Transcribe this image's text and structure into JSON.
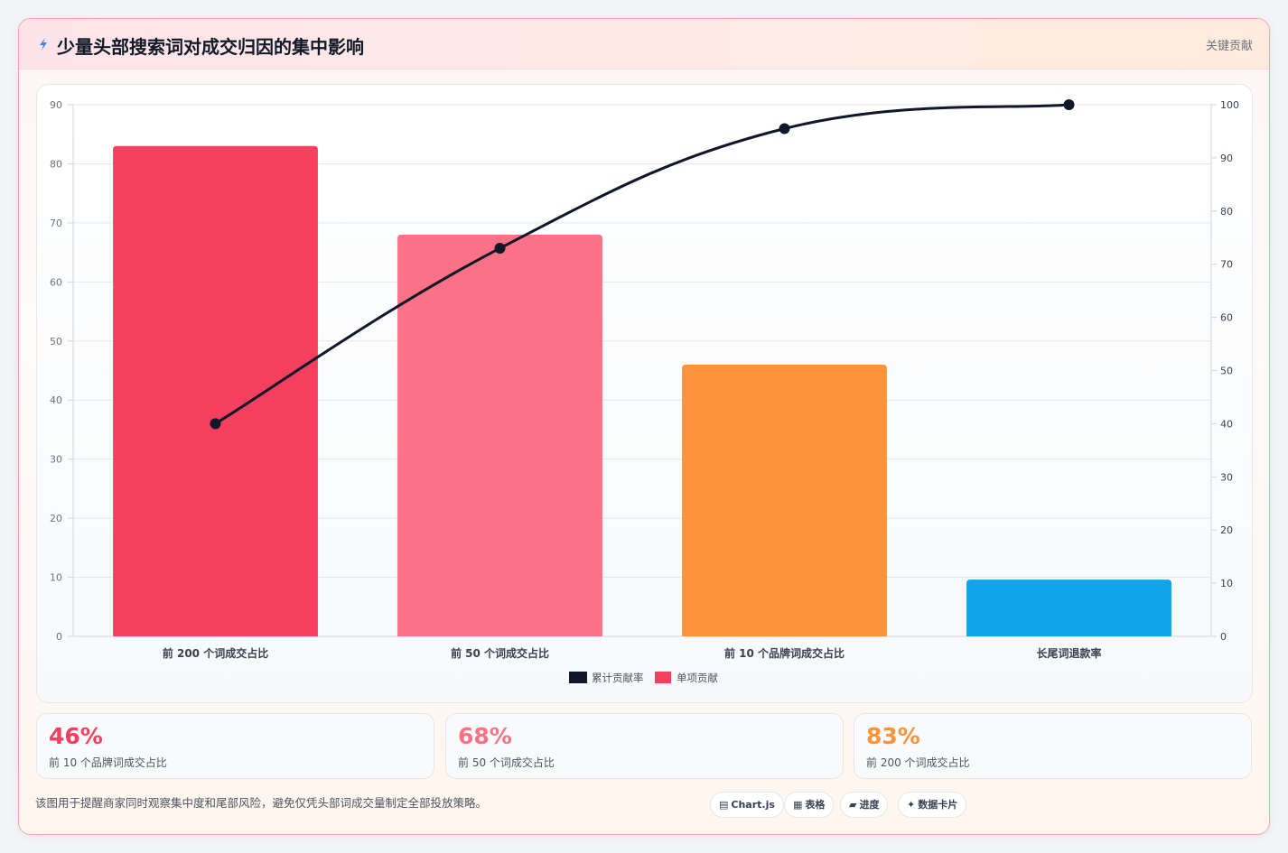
{
  "header": {
    "title": "少量头部搜索词对成交归因的集中影响",
    "tag": "关键贡献"
  },
  "colors": {
    "bars": [
      "#f43f5e",
      "#fb7185",
      "#fb923c",
      "#0ea5e9"
    ],
    "line": "#0f172a",
    "legend_bar": "#f43f5e"
  },
  "chart_data": {
    "type": "bar",
    "categories": [
      "前 200 个词成交占比",
      "前 50 个词成交占比",
      "前 10 个品牌词成交占比",
      "长尾词退款率"
    ],
    "series": [
      {
        "name": "单项贡献",
        "type": "bar",
        "axis": "left",
        "values": [
          83,
          68,
          46,
          9.6
        ]
      },
      {
        "name": "累计贡献率",
        "type": "line",
        "axis": "right",
        "values": [
          40,
          73,
          95.5,
          100
        ]
      }
    ],
    "y_left": {
      "min": 0,
      "max": 90,
      "ticks": [
        0,
        10,
        20,
        30,
        40,
        50,
        60,
        70,
        80,
        90
      ]
    },
    "y_right": {
      "min": 0,
      "max": 100,
      "ticks": [
        0,
        10,
        20,
        30,
        40,
        50,
        60,
        70,
        80,
        90,
        100
      ]
    },
    "grid": true,
    "legend_position": "bottom",
    "legend": [
      "累计贡献率",
      "单项贡献"
    ]
  },
  "stats": [
    {
      "value": "46%",
      "label": "前 10 个品牌词成交占比",
      "color": "#f43f5e"
    },
    {
      "value": "68%",
      "label": "前 50 个词成交占比",
      "color": "#fb7185"
    },
    {
      "value": "83%",
      "label": "前 200 个词成交占比",
      "color": "#fb923c"
    }
  ],
  "footnote": "该图用于提醒商家同时观察集中度和尾部风险，避免仅凭头部词成交量制定全部投放策略。",
  "pills": [
    {
      "icon": "▤",
      "label": "Chart.js"
    },
    {
      "icon": "▦",
      "label": "表格"
    },
    {
      "icon": "▰",
      "label": "进度"
    },
    {
      "icon": "✦",
      "label": "数据卡片"
    }
  ]
}
